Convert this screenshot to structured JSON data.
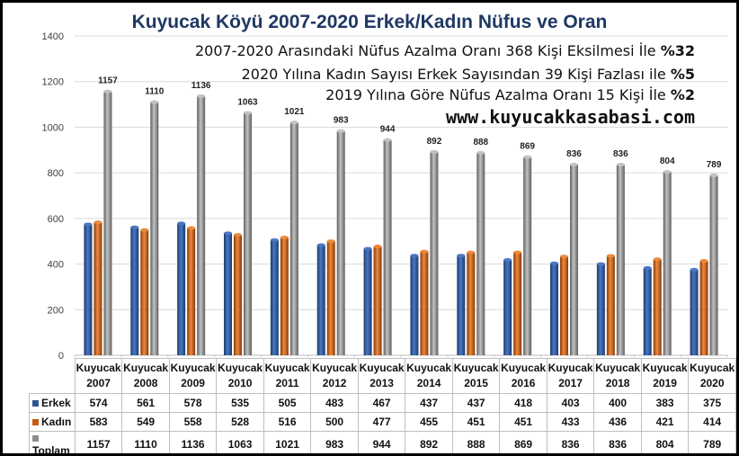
{
  "title": "Kuyucak Köyü 2007-2020 Erkek/Kadın Nüfus ve Oran",
  "notes": [
    {
      "text": "2007-2020 Arasındaki Nüfus Azalma Oranı 368 Kişi Eksilmesi İle ",
      "pct": "%32"
    },
    {
      "text": "2020 Yılına Kadın Sayısı Erkek Sayısından 39 Kişi Fazlası ile ",
      "pct": "%5"
    },
    {
      "text": "2019 Yılına Göre Nüfus Azalma Oranı 15 Kişi İle ",
      "pct": "%2"
    }
  ],
  "website": "www.kuyucakkasabasi.com",
  "colors": {
    "erkek": "#2f5597",
    "kadin": "#c55a11",
    "toplam": "#8c8c8c",
    "title": "#1f3864"
  },
  "chart_data": {
    "type": "bar",
    "title": "Kuyucak Köyü 2007-2020 Erkek/Kadın Nüfus ve Oran",
    "category_prefix": "Kuyucak",
    "categories": [
      "2007",
      "2008",
      "2009",
      "2010",
      "2011",
      "2012",
      "2013",
      "2014",
      "2015",
      "2016",
      "2017",
      "2018",
      "2019",
      "2020"
    ],
    "series": [
      {
        "name": "Erkek",
        "values": [
          574,
          561,
          578,
          535,
          505,
          483,
          467,
          437,
          437,
          418,
          403,
          400,
          383,
          375
        ]
      },
      {
        "name": "Kadın",
        "values": [
          583,
          549,
          558,
          528,
          516,
          500,
          477,
          455,
          451,
          451,
          433,
          436,
          421,
          414
        ]
      },
      {
        "name": "Toplam",
        "values": [
          1157,
          1110,
          1136,
          1063,
          1021,
          983,
          944,
          892,
          888,
          869,
          836,
          836,
          804,
          789
        ]
      }
    ],
    "ylim": [
      0,
      1400
    ],
    "yticks": [
      0,
      200,
      400,
      600,
      800,
      1000,
      1200,
      1400
    ],
    "grid": true,
    "legend": "data-table",
    "data_labels_series": "Toplam"
  }
}
